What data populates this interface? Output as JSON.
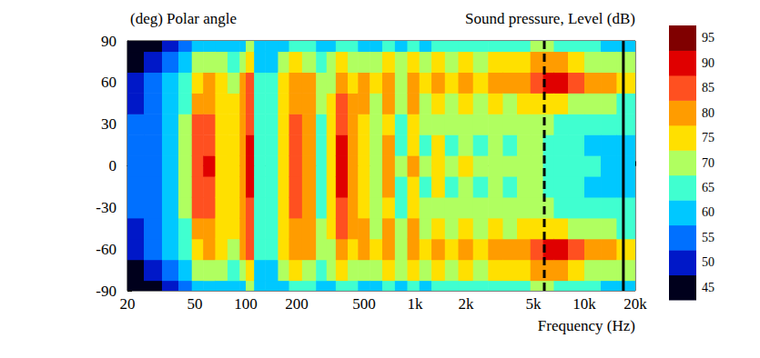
{
  "chart_data": {
    "type": "heatmap",
    "title": "Sound pressure, Level (dB)",
    "y_label": "(deg) Polar angle",
    "x_label": "Frequency (Hz)",
    "log": "x",
    "xlim": [
      20,
      20000
    ],
    "xticks": [
      20,
      50,
      100,
      200,
      500,
      {
        "value": 1000,
        "label": "1k"
      },
      {
        "value": 2000,
        "label": "2k"
      },
      {
        "value": 5000,
        "label": "5k"
      },
      {
        "value": 10000,
        "label": "10k"
      },
      {
        "value": 20000,
        "label": "20k"
      }
    ],
    "ylim": [
      -90,
      90
    ],
    "yticks": [
      -90,
      -60,
      -30,
      0,
      30,
      60,
      90
    ],
    "freq_edges": [
      20,
      25,
      32,
      40,
      48,
      56,
      66,
      78,
      92,
      100,
      112,
      130,
      155,
      180,
      215,
      260,
      300,
      340,
      400,
      460,
      540,
      640,
      760,
      900,
      1060,
      1250,
      1500,
      1800,
      2200,
      2700,
      3300,
      4000,
      4800,
      5700,
      6600,
      8000,
      10000,
      12500,
      15500,
      20000
    ],
    "angle_edges": [
      -90,
      -82.5,
      -67.5,
      -52.5,
      -37.5,
      -22.5,
      -7.5,
      7.5,
      22.5,
      37.5,
      52.5,
      67.5,
      82.5,
      90
    ],
    "levels": [
      [
        43,
        46,
        50,
        52,
        53,
        53,
        53,
        53,
        53,
        52,
        50,
        46,
        43
      ],
      [
        45,
        50,
        54,
        55,
        56,
        56,
        56,
        56,
        56,
        55,
        54,
        50,
        45
      ],
      [
        50,
        55,
        58,
        60,
        61,
        62,
        62,
        62,
        61,
        60,
        58,
        55,
        50
      ],
      [
        55,
        60,
        64,
        66,
        68,
        70,
        70,
        70,
        68,
        66,
        64,
        60,
        55
      ],
      [
        60,
        68,
        76,
        80,
        83,
        85,
        86,
        85,
        83,
        80,
        76,
        68,
        60
      ],
      [
        62,
        70,
        80,
        82,
        85,
        87,
        88,
        87,
        85,
        82,
        80,
        70,
        62
      ],
      [
        60,
        68,
        73,
        75,
        76,
        77,
        77,
        77,
        76,
        75,
        73,
        68,
        60
      ],
      [
        58,
        66,
        72,
        74,
        75,
        76,
        76,
        76,
        75,
        74,
        72,
        66,
        58
      ],
      [
        62,
        70,
        78,
        80,
        81,
        82,
        82,
        82,
        81,
        80,
        78,
        70,
        62
      ],
      [
        68,
        76,
        83,
        86,
        87,
        88,
        88,
        88,
        87,
        86,
        83,
        76,
        68
      ],
      [
        58,
        62,
        65,
        66,
        66,
        66,
        66,
        66,
        66,
        66,
        65,
        62,
        58
      ],
      [
        58,
        62,
        64,
        65,
        66,
        66,
        66,
        66,
        66,
        65,
        64,
        62,
        58
      ],
      [
        62,
        70,
        75,
        76,
        77,
        77,
        77,
        77,
        77,
        76,
        75,
        70,
        62
      ],
      [
        66,
        74,
        80,
        82,
        83,
        84,
        84,
        84,
        83,
        82,
        80,
        74,
        66
      ],
      [
        64,
        72,
        78,
        80,
        81,
        82,
        82,
        82,
        81,
        80,
        78,
        72,
        64
      ],
      [
        60,
        65,
        68,
        68,
        67,
        66,
        66,
        66,
        67,
        68,
        68,
        65,
        60
      ],
      [
        62,
        68,
        72,
        74,
        75,
        76,
        77,
        76,
        75,
        74,
        72,
        68,
        62
      ],
      [
        66,
        74,
        80,
        83,
        85,
        88,
        92,
        88,
        85,
        83,
        80,
        74,
        66
      ],
      [
        64,
        70,
        76,
        78,
        79,
        80,
        80,
        80,
        79,
        78,
        76,
        70,
        64
      ],
      [
        62,
        72,
        82,
        80,
        76,
        74,
        76,
        74,
        76,
        80,
        82,
        72,
        62
      ],
      [
        62,
        68,
        74,
        72,
        70,
        68,
        68,
        68,
        70,
        72,
        74,
        68,
        62
      ],
      [
        64,
        74,
        82,
        80,
        76,
        78,
        80,
        78,
        76,
        80,
        82,
        74,
        64
      ],
      [
        62,
        68,
        72,
        70,
        66,
        67,
        70,
        67,
        66,
        70,
        72,
        68,
        62
      ],
      [
        64,
        74,
        80,
        78,
        75,
        76,
        78,
        76,
        75,
        78,
        80,
        74,
        64
      ],
      [
        62,
        70,
        74,
        72,
        68,
        66,
        70,
        66,
        68,
        72,
        74,
        70,
        62
      ],
      [
        64,
        74,
        80,
        76,
        72,
        74,
        76,
        74,
        72,
        76,
        80,
        74,
        64
      ],
      [
        63,
        72,
        76,
        72,
        68,
        66,
        68,
        66,
        68,
        72,
        76,
        72,
        63
      ],
      [
        64,
        74,
        80,
        74,
        70,
        72,
        74,
        72,
        70,
        74,
        80,
        74,
        64
      ],
      [
        64,
        72,
        76,
        72,
        68,
        67,
        68,
        67,
        68,
        72,
        76,
        72,
        64
      ],
      [
        65,
        74,
        80,
        74,
        70,
        70,
        72,
        70,
        70,
        74,
        80,
        74,
        65
      ],
      [
        66,
        74,
        78,
        72,
        68,
        67,
        68,
        67,
        68,
        72,
        78,
        74,
        66
      ],
      [
        66,
        76,
        82,
        75,
        70,
        70,
        72,
        70,
        70,
        75,
        82,
        76,
        66
      ],
      [
        68,
        78,
        86,
        76,
        72,
        68,
        70,
        68,
        72,
        76,
        86,
        78,
        68
      ],
      [
        68,
        80,
        88,
        76,
        70,
        66,
        66,
        66,
        70,
        76,
        88,
        80,
        68
      ],
      [
        66,
        78,
        88,
        74,
        66,
        64,
        64,
        64,
        66,
        74,
        88,
        78,
        66
      ],
      [
        64,
        74,
        84,
        72,
        65,
        63,
        64,
        63,
        65,
        72,
        84,
        74,
        64
      ],
      [
        63,
        72,
        80,
        70,
        64,
        62,
        63,
        62,
        64,
        70,
        80,
        72,
        63
      ],
      [
        62,
        70,
        78,
        68,
        64,
        62,
        62,
        62,
        64,
        68,
        78,
        70,
        62
      ],
      [
        62,
        68,
        76,
        66,
        63,
        62,
        62,
        62,
        63,
        66,
        76,
        68,
        62
      ]
    ],
    "colorbar": {
      "range": [
        42.5,
        97.5
      ],
      "ticks": [
        45,
        50,
        55,
        60,
        65,
        70,
        75,
        80,
        85,
        90,
        95
      ],
      "colors": [
        "#00001c",
        "#0018c8",
        "#0070ff",
        "#00c8ff",
        "#40ffd0",
        "#b0ff60",
        "#ffe000",
        "#ff9c00",
        "#ff5020",
        "#e00000",
        "#800000"
      ]
    },
    "reference_lines": [
      {
        "x": 5800,
        "line_style": "dashed"
      },
      {
        "x": 17000,
        "line_style": "solid"
      }
    ]
  }
}
